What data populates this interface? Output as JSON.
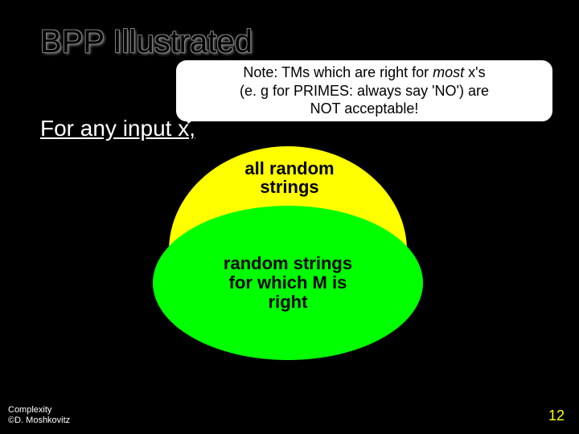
{
  "slide": {
    "title": "BPP Illustrated",
    "callout": {
      "line1_prefix": "Note: TMs which are right for ",
      "line1_em": "most",
      "line1_suffix": " x's",
      "line2": "(e. g for PRIMES: always say 'NO') are",
      "line3": "NOT acceptable!"
    },
    "subtitle": "For any input x,",
    "outer_ellipse": {
      "label_line1": "all random",
      "label_line2": "strings",
      "fill_color": "#ffff00"
    },
    "inner_ellipse": {
      "label_line1": "random strings",
      "label_line2": "for which M is",
      "label_line3": "right",
      "fill_color": "#00ff00"
    },
    "footer": {
      "left_line1": "Complexity",
      "left_line2": "©D. Moshkovitz",
      "page_number": "12"
    },
    "style": {
      "background": "#000000",
      "title_fontsize": 40,
      "subtitle_fontsize": 28,
      "label_fontsize": 22,
      "callout_fontsize": 18,
      "footer_fontsize": 11,
      "pagenum_color": "#ffff00"
    }
  }
}
